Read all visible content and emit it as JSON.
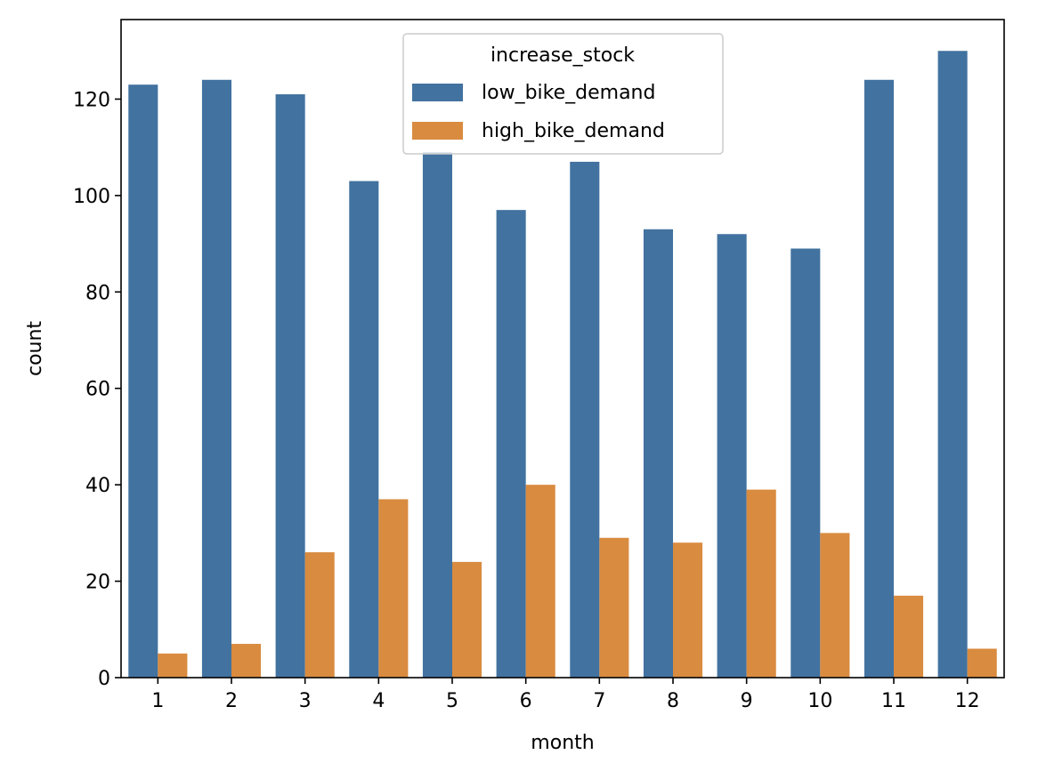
{
  "chart_data": {
    "type": "bar",
    "title": "",
    "xlabel": "month",
    "ylabel": "count",
    "categories": [
      "1",
      "2",
      "3",
      "4",
      "5",
      "6",
      "7",
      "8",
      "9",
      "10",
      "11",
      "12"
    ],
    "series": [
      {
        "name": "low_bike_demand",
        "color": "#4272a0",
        "values": [
          123,
          124,
          121,
          103,
          109,
          97,
          107,
          93,
          92,
          89,
          124,
          130
        ]
      },
      {
        "name": "high_bike_demand",
        "color": "#d98b3f",
        "values": [
          5,
          7,
          26,
          37,
          24,
          40,
          29,
          28,
          39,
          30,
          17,
          6
        ]
      }
    ],
    "ylim": [
      0,
      136.5
    ],
    "yticks": [
      0,
      20,
      40,
      60,
      80,
      100,
      120
    ],
    "legend": {
      "title": "increase_stock",
      "placement": "top-center"
    },
    "grid": false
  }
}
